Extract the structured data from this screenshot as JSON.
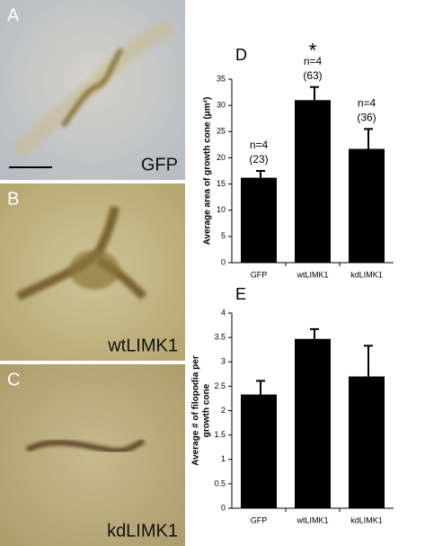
{
  "panels": [
    {
      "letter": "A",
      "label": "GFP"
    },
    {
      "letter": "B",
      "label": "wtLIMK1"
    },
    {
      "letter": "C",
      "label": "kdLIMK1"
    }
  ],
  "chart_data": [
    {
      "type": "bar",
      "panel": "D",
      "ylabel": [
        "Average area of growth cone (μm²)"
      ],
      "categories": [
        "GFP",
        "wtLIMK1",
        "kdLIMK1"
      ],
      "values": [
        16.2,
        31,
        21.7
      ],
      "errors": [
        1.3,
        2.5,
        3.8
      ],
      "annotations": [
        [
          "n=4",
          "(23)"
        ],
        [
          "*",
          "n=4",
          "(63)"
        ],
        [
          "n=4",
          "(36)"
        ]
      ],
      "color": "#000000",
      "ylim": [
        0,
        35
      ],
      "yticks": [
        0,
        5,
        10,
        15,
        20,
        25,
        30,
        35
      ]
    },
    {
      "type": "bar",
      "panel": "E",
      "ylabel": [
        "Average # of filopodia per",
        "growth cone"
      ],
      "categories": [
        "GFP",
        "wtLIMK1",
        "kdLIMK1"
      ],
      "values": [
        2.33,
        3.47,
        2.7
      ],
      "errors": [
        0.28,
        0.2,
        0.63
      ],
      "color": "#000000",
      "ylim": [
        0,
        4
      ],
      "yticks": [
        0,
        0.5,
        1,
        1.5,
        2,
        2.5,
        3,
        3.5,
        4
      ]
    }
  ]
}
